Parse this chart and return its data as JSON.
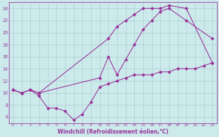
{
  "bg_color": "#cceaec",
  "line_color": "#993399",
  "grid_color": "#aacccc",
  "xlabel": "Windchill (Refroidissement éolien,°C)",
  "xlim": [
    -0.5,
    23.5
  ],
  "ylim": [
    5,
    25
  ],
  "yticks": [
    6,
    8,
    10,
    12,
    14,
    16,
    18,
    20,
    22,
    24
  ],
  "xticks": [
    0,
    1,
    2,
    3,
    4,
    5,
    6,
    7,
    8,
    9,
    10,
    11,
    12,
    13,
    14,
    15,
    16,
    17,
    18,
    19,
    20,
    21,
    22,
    23
  ],
  "line1_x": [
    0,
    1,
    2,
    3,
    11,
    12,
    13,
    14,
    15,
    16,
    17,
    18,
    20,
    23
  ],
  "line1_y": [
    10.5,
    10,
    10.5,
    10,
    19,
    21,
    22,
    23,
    24,
    24,
    24,
    24.5,
    24,
    15
  ],
  "line2_x": [
    0,
    1,
    2,
    3,
    10,
    11,
    12,
    13,
    14,
    15,
    16,
    17,
    18,
    20,
    23
  ],
  "line2_y": [
    10.5,
    10,
    10.5,
    10,
    12.5,
    16,
    13,
    15.5,
    18,
    20.5,
    22,
    23.5,
    24,
    22,
    19
  ],
  "line3_x": [
    0,
    1,
    2,
    3,
    4,
    5,
    6,
    7,
    8,
    9,
    10,
    11,
    12,
    13,
    14,
    15,
    16,
    17,
    18,
    19,
    20,
    21,
    22,
    23
  ],
  "line3_y": [
    10.5,
    10,
    10.5,
    9.5,
    7.5,
    7.5,
    7,
    5.5,
    6.5,
    8.5,
    11,
    11.5,
    12,
    12.5,
    13,
    13,
    13,
    13.5,
    13.5,
    14,
    14,
    14,
    14.5,
    15
  ]
}
